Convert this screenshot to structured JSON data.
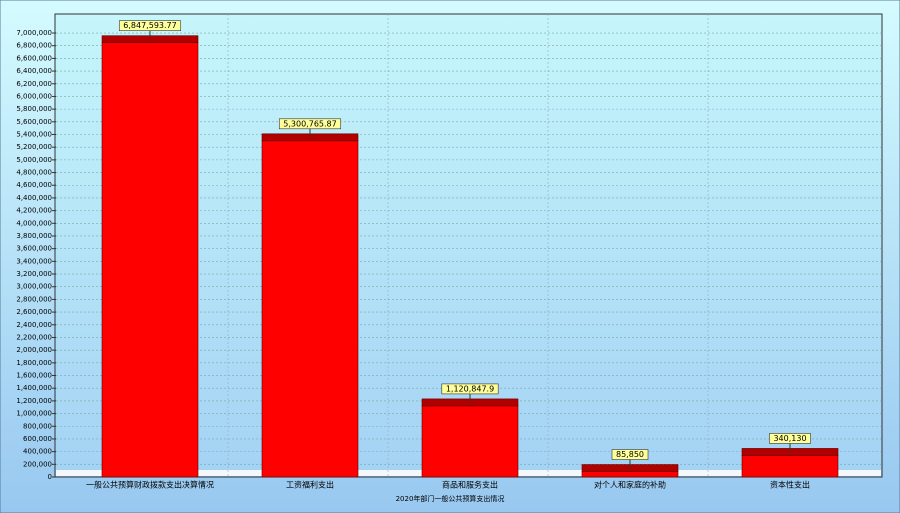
{
  "chart_data": {
    "type": "bar",
    "x_label": "2020年部门一般公共预算支出情况",
    "categories": [
      "一般公共预算财政拨款支出决算情况",
      "工资福利支出",
      "商品和服务支出",
      "对个人和家庭的补助",
      "资本性支出"
    ],
    "values": [
      6847593.77,
      5300765.87,
      1120847.9,
      85850,
      340130
    ],
    "value_labels": [
      "6,847,593.77",
      "5,300,765.87",
      "1,120,847.9",
      "85,850",
      "340,130"
    ],
    "color": "#ff0000",
    "ylim": [
      0,
      7300000
    ],
    "yticks": [
      0,
      {
        "value": 200000,
        "label": "200,000"
      },
      {
        "value": 400000,
        "label": "400,000"
      },
      {
        "value": 600000,
        "label": "600,000"
      },
      {
        "value": 800000,
        "label": "800,000"
      },
      {
        "value": 1000000,
        "label": "1,000,000"
      },
      {
        "value": 1200000,
        "label": "1,200,000"
      },
      {
        "value": 1400000,
        "label": "1,400,000"
      },
      {
        "value": 1600000,
        "label": "1,600,000"
      },
      {
        "value": 1800000,
        "label": "1,800,000"
      },
      {
        "value": 2000000,
        "label": "2,000,000"
      },
      {
        "value": 2200000,
        "label": "2,200,000"
      },
      {
        "value": 2400000,
        "label": "2,400,000"
      },
      {
        "value": 2600000,
        "label": "2,600,000"
      },
      {
        "value": 2800000,
        "label": "2,800,000"
      },
      {
        "value": 3000000,
        "label": "3,000,000"
      },
      {
        "value": 3200000,
        "label": "3,200,000"
      },
      {
        "value": 3400000,
        "label": "3,400,000"
      },
      {
        "value": 3600000,
        "label": "3,600,000"
      },
      {
        "value": 3800000,
        "label": "3,800,000"
      },
      {
        "value": 4000000,
        "label": "4,000,000"
      },
      {
        "value": 4200000,
        "label": "4,200,000"
      },
      {
        "value": 4400000,
        "label": "4,400,000"
      },
      {
        "value": 4600000,
        "label": "4,600,000"
      },
      {
        "value": 4800000,
        "label": "4,800,000"
      },
      {
        "value": 5000000,
        "label": "5,000,000"
      },
      {
        "value": 5200000,
        "label": "5,200,000"
      },
      {
        "value": 5400000,
        "label": "5,400,000"
      },
      {
        "value": 5600000,
        "label": "5,600,000"
      },
      {
        "value": 5800000,
        "label": "5,800,000"
      },
      {
        "value": 6000000,
        "label": "6,000,000"
      },
      {
        "value": 6200000,
        "label": "6,200,000"
      },
      {
        "value": 6400000,
        "label": "6,400,000"
      },
      {
        "value": 6600000,
        "label": "6,600,000"
      },
      {
        "value": 6800000,
        "label": "6,800,000"
      },
      {
        "value": 7000000,
        "label": "7,000,000"
      }
    ],
    "grid": true
  }
}
